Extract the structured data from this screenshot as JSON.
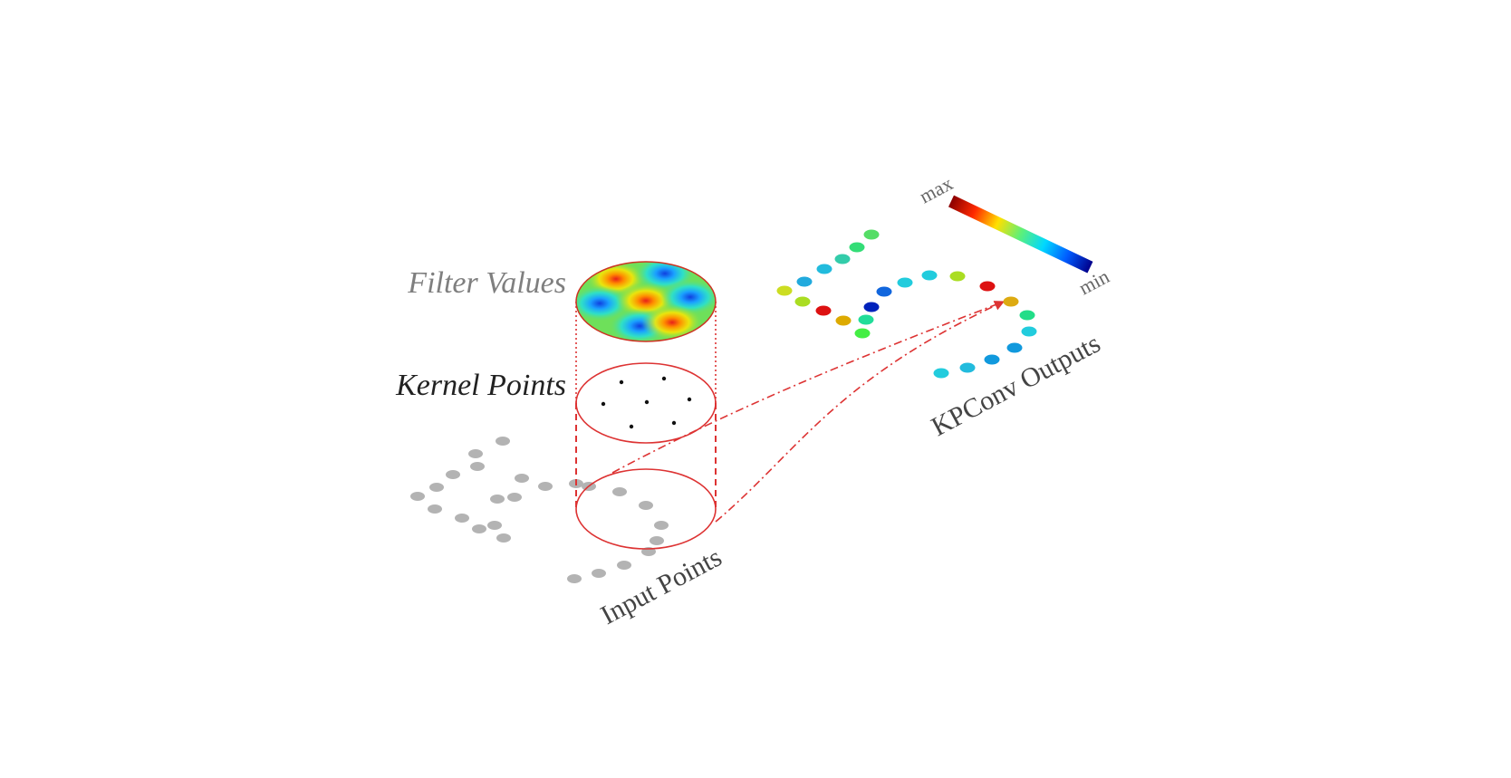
{
  "labels": {
    "filter_values": "Filter Values",
    "kernel_points": "Kernel Points",
    "input_points": "Input Points",
    "kpconv_outputs": "KPConv Outputs",
    "colorbar_max": "max",
    "colorbar_min": "min"
  },
  "colors": {
    "input_point": "#b3b3b3",
    "cylinder_red": "#dd3333",
    "kernel_point": "#111111",
    "filter_label": "#7f7f7f",
    "kernel_label": "#222222",
    "axis_label": "#444444"
  },
  "colorbar": {
    "stops": [
      "#8b0000",
      "#ff2a00",
      "#ffe000",
      "#5cf07a",
      "#00d8ff",
      "#005cff",
      "#00008b"
    ]
  },
  "output_points": [
    {
      "color": "#55dd66"
    },
    {
      "color": "#33dd77"
    },
    {
      "color": "#33ccaa"
    },
    {
      "color": "#22bbdd"
    },
    {
      "color": "#22aadd"
    },
    {
      "color": "#ccdd22"
    },
    {
      "color": "#aadd22"
    },
    {
      "color": "#dd1111"
    },
    {
      "color": "#ddaa00"
    },
    {
      "color": "#22dd99"
    },
    {
      "color": "#44ee44"
    },
    {
      "color": "#0022bb"
    },
    {
      "color": "#1166dd"
    },
    {
      "color": "#22ccdd"
    },
    {
      "color": "#22ccdd"
    },
    {
      "color": "#aadd22"
    },
    {
      "color": "#dd1111"
    },
    {
      "color": "#ddaa11"
    },
    {
      "color": "#22dd88"
    },
    {
      "color": "#22ccdd"
    },
    {
      "color": "#1199dd"
    },
    {
      "color": "#1199dd"
    },
    {
      "color": "#22bbdd"
    },
    {
      "color": "#22ccdd"
    }
  ]
}
